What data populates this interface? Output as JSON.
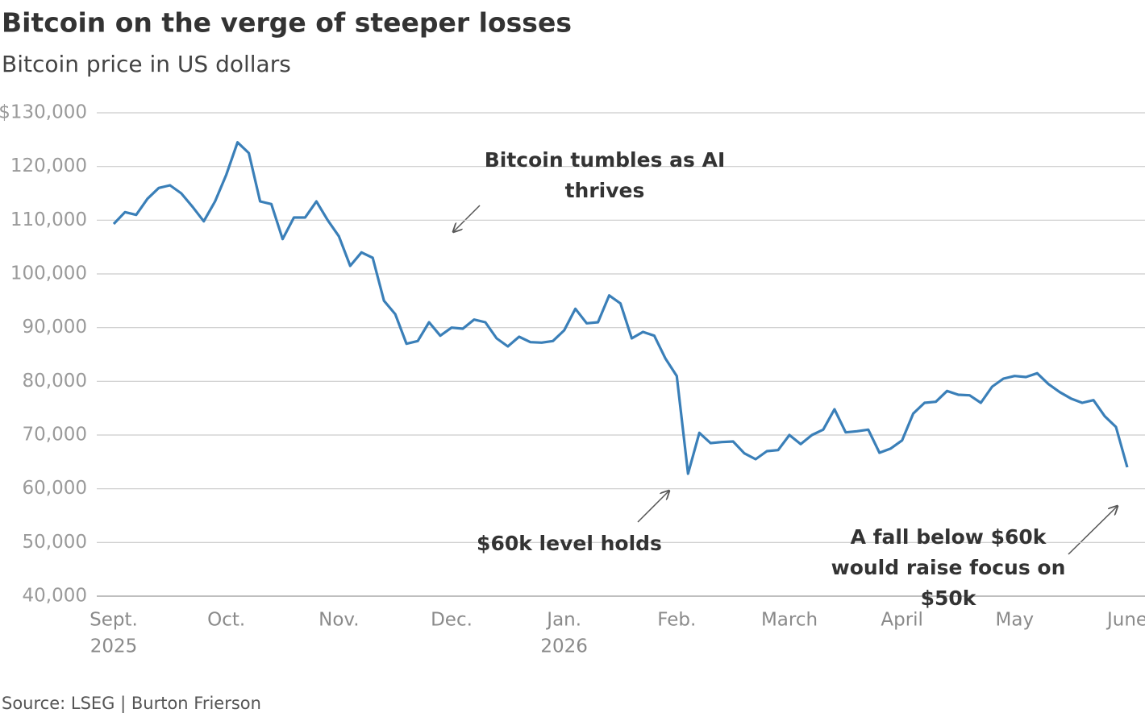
{
  "chart_data": {
    "type": "line",
    "title": "Bitcoin on the verge of steeper losses",
    "subtitle": "Bitcoin price in US dollars",
    "source": "Source: LSEG | Burton Frierson",
    "categories": [
      "Sept.",
      null,
      null,
      null,
      null,
      null,
      null,
      null,
      null,
      null,
      "Oct.",
      null,
      null,
      null,
      null,
      null,
      null,
      null,
      null,
      null,
      "Nov.",
      null,
      null,
      null,
      null,
      null,
      null,
      null,
      null,
      null,
      "Dec.",
      null,
      null,
      null,
      null,
      null,
      null,
      null,
      null,
      null,
      "Jan.",
      null,
      null,
      null,
      null,
      null,
      null,
      null,
      null,
      null,
      "Feb.",
      null,
      null,
      null,
      null,
      null,
      null,
      null,
      null,
      null,
      "March",
      null,
      null,
      null,
      null,
      null,
      null,
      null,
      null,
      null,
      "April",
      null,
      null,
      null,
      null,
      null,
      null,
      null,
      null,
      null,
      "May",
      null,
      null,
      null,
      null,
      null,
      null,
      null,
      null,
      null,
      "June"
    ],
    "category_years": [
      "2025",
      null,
      null,
      null,
      null,
      null,
      null,
      null,
      null,
      null,
      null,
      null,
      null,
      null,
      null,
      null,
      null,
      null,
      null,
      null,
      null,
      null,
      null,
      null,
      null,
      null,
      null,
      null,
      null,
      null,
      null,
      null,
      null,
      null,
      null,
      null,
      null,
      null,
      null,
      null,
      "2026",
      null,
      null,
      null,
      null,
      null,
      null,
      null,
      null,
      null,
      null,
      null,
      null,
      null,
      null,
      null,
      null,
      null,
      null,
      null,
      null,
      null,
      null,
      null,
      null,
      null,
      null,
      null,
      null,
      null,
      null,
      null,
      null,
      null,
      null,
      null,
      null,
      null,
      null,
      null,
      null,
      null,
      null,
      null,
      null,
      null,
      null,
      null,
      null,
      null,
      null
    ],
    "series": [
      {
        "name": "Bitcoin",
        "color": "#3a7fb8",
        "values": [
          109300,
          111500,
          111000,
          114000,
          116000,
          116500,
          115000,
          112500,
          109800,
          113500,
          118500,
          124500,
          122500,
          113500,
          113000,
          106500,
          110500,
          110500,
          113500,
          110000,
          107000,
          101500,
          104000,
          103000,
          95000,
          92500,
          87000,
          87500,
          91000,
          88500,
          90000,
          89800,
          91500,
          91000,
          88000,
          86500,
          88300,
          87300,
          87200,
          87500,
          89500,
          93500,
          90800,
          91000,
          96000,
          94500,
          88000,
          89200,
          88500,
          84200,
          81000,
          62800,
          70400,
          68500,
          68700,
          68800,
          66600,
          65500,
          67000,
          67200,
          70000,
          68300,
          70000,
          71000,
          74800,
          70500,
          70700,
          71000,
          66700,
          67500,
          69000,
          74000,
          76000,
          76200,
          78200,
          77500,
          77400,
          76000,
          79000,
          80500,
          81000,
          80800,
          81500,
          79500,
          78000,
          76800,
          76000,
          76500,
          73500,
          71500,
          64000
        ]
      }
    ],
    "ylim": [
      40000,
      130000
    ],
    "yticks": [
      {
        "value": 40000,
        "label": "40,000"
      },
      {
        "value": 50000,
        "label": "50,000"
      },
      {
        "value": 60000,
        "label": "60,000"
      },
      {
        "value": 70000,
        "label": "70,000"
      },
      {
        "value": 80000,
        "label": "80,000"
      },
      {
        "value": 90000,
        "label": "90,000"
      },
      {
        "value": 100000,
        "label": "100,000"
      },
      {
        "value": 110000,
        "label": "110,000"
      },
      {
        "value": 120000,
        "label": "120,000"
      },
      {
        "value": 130000,
        "label": "$130,000"
      }
    ],
    "grid": true,
    "annotations": [
      {
        "lines": [
          "Bitcoin tumbles as AI",
          "thrives"
        ]
      },
      {
        "lines": [
          "$60k level holds"
        ]
      },
      {
        "lines": [
          "A fall below $60k",
          "would raise focus on",
          "$50k"
        ]
      }
    ]
  }
}
